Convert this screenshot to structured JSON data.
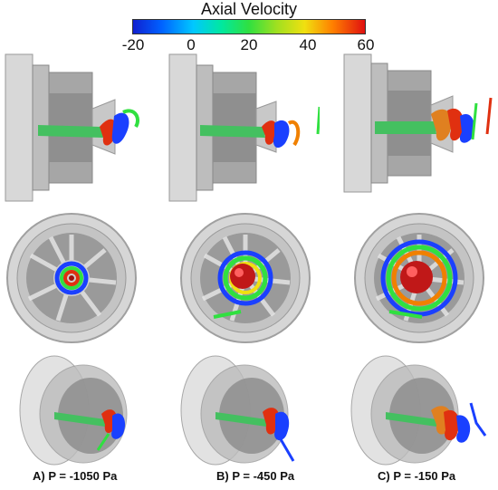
{
  "colorbar": {
    "title": "Axial Velocity",
    "ticks": [
      "-20",
      "0",
      "20",
      "40",
      "60"
    ],
    "gradient": [
      "#1020d0",
      "#0060ff",
      "#00c8ff",
      "#00e8a0",
      "#30e040",
      "#a0e020",
      "#f0e010",
      "#ff8000",
      "#e01010"
    ]
  },
  "captions": {
    "a": "A)  P = -1050 Pa",
    "b": "B)  P = -450 Pa",
    "c": "C)  P = -150 Pa"
  }
}
